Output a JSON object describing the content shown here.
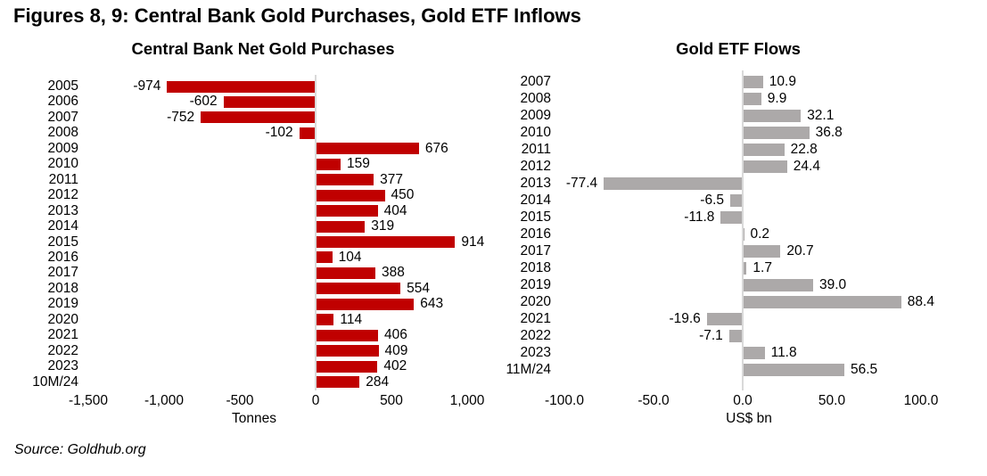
{
  "page_title": "Figures 8, 9: Central Bank Gold Purchases, Gold ETF Inflows",
  "source": "Source: Goldhub.org",
  "colors": {
    "central_bank_bar": "#C00000",
    "etf_bar": "#ACA9A9",
    "axis_line": "#D9D9D9",
    "text": "#000000",
    "background": "#FFFFFF"
  },
  "chart_data": [
    {
      "type": "bar",
      "orientation": "horizontal",
      "title": "Central Bank Net Gold Purchases",
      "categories": [
        "2005",
        "2006",
        "2007",
        "2008",
        "2009",
        "2010",
        "2011",
        "2012",
        "2013",
        "2014",
        "2015",
        "2016",
        "2017",
        "2018",
        "2019",
        "2020",
        "2021",
        "2022",
        "2023",
        "10M/24"
      ],
      "values": [
        -974,
        -602,
        -752,
        -102,
        676,
        159,
        377,
        450,
        404,
        319,
        914,
        104,
        388,
        554,
        643,
        114,
        406,
        409,
        402,
        284
      ],
      "value_labels": [
        "-974",
        "-602",
        "-752",
        "-102",
        "676",
        "159",
        "377",
        "450",
        "404",
        "319",
        "914",
        "104",
        "388",
        "554",
        "643",
        "114",
        "406",
        "409",
        "402",
        "284"
      ],
      "xlabel": "Tonnes",
      "xlim": [
        -1500,
        1000
      ],
      "xticks": [
        "-1,500",
        "-1,000",
        "-500",
        "0",
        "500",
        "1,000"
      ],
      "bar_color": "#C00000",
      "grid": false,
      "legend": "none"
    },
    {
      "type": "bar",
      "orientation": "horizontal",
      "title": "Gold ETF Flows",
      "categories": [
        "2007",
        "2008",
        "2009",
        "2010",
        "2011",
        "2012",
        "2013",
        "2014",
        "2015",
        "2016",
        "2017",
        "2018",
        "2019",
        "2020",
        "2021",
        "2022",
        "2023",
        "11M/24"
      ],
      "values": [
        10.9,
        9.9,
        32.1,
        36.8,
        22.8,
        24.4,
        -77.4,
        -6.5,
        -11.8,
        0.2,
        20.7,
        1.7,
        39.0,
        88.4,
        -19.6,
        -7.1,
        11.8,
        56.5
      ],
      "value_labels": [
        "10.9",
        "9.9",
        "32.1",
        "36.8",
        "22.8",
        "24.4",
        "-77.4",
        "-6.5",
        "-11.8",
        "0.2",
        "20.7",
        "1.7",
        "39.0",
        "88.4",
        "-19.6",
        "-7.1",
        "11.8",
        "56.5"
      ],
      "xlabel": "US$ bn",
      "xlim": [
        -100,
        100
      ],
      "xticks": [
        "-100.0",
        "-50.0",
        "0.0",
        "50.0",
        "100.0"
      ],
      "bar_color": "#ACA9A9",
      "grid": false,
      "legend": "none"
    }
  ]
}
